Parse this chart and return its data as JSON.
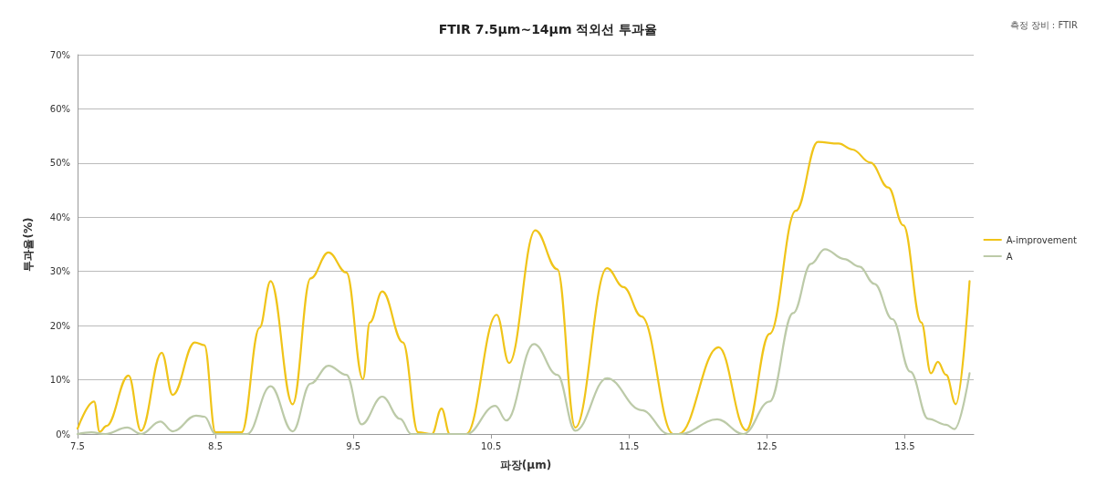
{
  "chart_data": {
    "type": "line",
    "title": "FTIR 7.5µm~14µm 적외선 투과율",
    "xlabel": "파장(µm)",
    "ylabel": "투과율(%)",
    "annotations": [
      "측정 장비 : FTIR"
    ],
    "xlim": [
      7.5,
      14.0
    ],
    "xticks": [
      7.5,
      8.5,
      9.5,
      10.5,
      11.5,
      12.5,
      13.5
    ],
    "ylim": [
      0,
      70
    ],
    "yticks": [
      {
        "value": 0,
        "label": "0%"
      },
      {
        "value": 10,
        "label": "10%"
      },
      {
        "value": 20,
        "label": "20%"
      },
      {
        "value": 30,
        "label": "30%"
      },
      {
        "value": 40,
        "label": "40%"
      },
      {
        "value": 50,
        "label": "50%"
      },
      {
        "value": 60,
        "label": "60%"
      },
      {
        "value": 70,
        "label": "70%"
      }
    ],
    "grid": "y",
    "legend": "right",
    "marker": "none",
    "line_style": "solid",
    "series": [
      {
        "name": "A-improvement",
        "color": "#f0c419",
        "x": [
          7.5,
          7.62,
          7.66,
          7.71,
          7.87,
          7.96,
          8.11,
          8.19,
          8.35,
          8.42,
          8.5,
          8.69,
          8.82,
          8.9,
          9.06,
          9.19,
          9.32,
          9.45,
          9.57,
          9.62,
          9.71,
          9.86,
          9.97,
          10.07,
          10.14,
          10.2,
          10.32,
          10.54,
          10.63,
          10.82,
          10.98,
          11.11,
          11.34,
          11.46,
          11.59,
          11.82,
          11.86,
          12.15,
          12.35,
          12.52,
          12.71,
          12.87,
          13.02,
          13.12,
          13.25,
          13.38,
          13.49,
          13.62,
          13.69,
          13.74,
          13.8,
          13.87,
          13.97
        ],
        "values": [
          1,
          6,
          0.4,
          1.5,
          10.8,
          0.6,
          15,
          7.2,
          16.9,
          16.4,
          0.3,
          0.3,
          19.6,
          28.2,
          5.5,
          28.7,
          33.5,
          29.8,
          10.1,
          20.6,
          26.3,
          16.9,
          0.3,
          0,
          4.7,
          0,
          0,
          22,
          13.1,
          37.6,
          30.4,
          1.2,
          30.6,
          27.1,
          21.7,
          0,
          0,
          16,
          0.7,
          18.5,
          41.2,
          53.9,
          53.6,
          52.5,
          50.1,
          45.5,
          38.5,
          20.6,
          11.2,
          13.3,
          10.9,
          5.5,
          28.2
        ]
      },
      {
        "name": "A",
        "color": "#bccaa8",
        "x": [
          7.5,
          7.6,
          7.7,
          7.86,
          7.96,
          8.1,
          8.19,
          8.36,
          8.42,
          8.5,
          8.73,
          8.9,
          9.06,
          9.19,
          9.32,
          9.45,
          9.56,
          9.71,
          9.84,
          9.92,
          10.32,
          10.53,
          10.61,
          10.81,
          10.98,
          11.11,
          11.34,
          11.59,
          11.79,
          11.87,
          12.14,
          12.33,
          12.52,
          12.69,
          12.82,
          12.92,
          13.06,
          13.17,
          13.28,
          13.41,
          13.54,
          13.67,
          13.8,
          13.86,
          13.97
        ],
        "values": [
          0,
          0.3,
          0,
          1.2,
          0,
          2.3,
          0.5,
          3.4,
          3.2,
          0,
          0,
          8.8,
          0.5,
          9.3,
          12.6,
          10.9,
          1.8,
          6.9,
          2.8,
          0,
          0,
          5.2,
          2.5,
          16.6,
          10.9,
          0.6,
          10.3,
          4.4,
          0,
          0,
          2.7,
          0,
          6,
          22.3,
          31.4,
          34.1,
          32.3,
          30.9,
          27.7,
          21.2,
          11.5,
          2.8,
          1.7,
          0.9,
          11.2
        ]
      }
    ]
  }
}
